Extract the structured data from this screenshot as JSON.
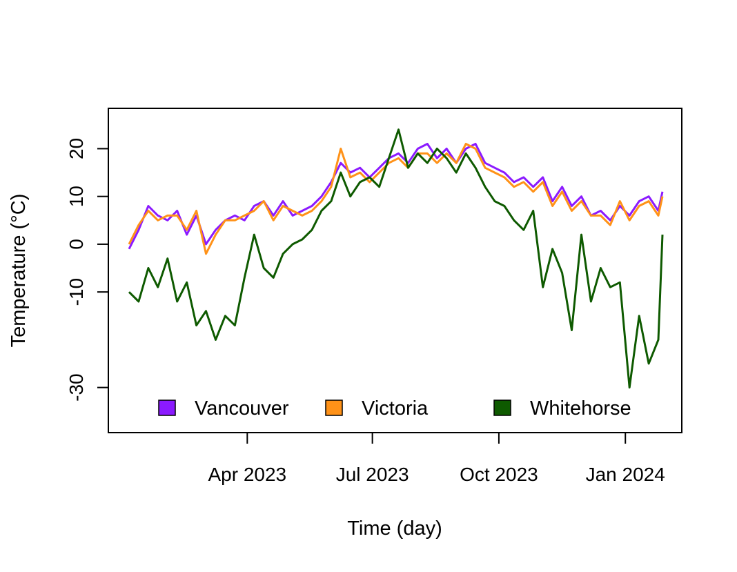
{
  "chart_data": {
    "type": "line",
    "title": "",
    "xlabel": "Time (day)",
    "ylabel": "Temperature (°C)",
    "xlim": [
      "2023-01-01",
      "2024-01-31"
    ],
    "ylim": [
      -38,
      27
    ],
    "grid": false,
    "legend_position": "bottom",
    "x_ticks": [
      {
        "date": "2023-04-01",
        "label": "Apr 2023"
      },
      {
        "date": "2023-07-01",
        "label": "Jul 2023"
      },
      {
        "date": "2023-10-01",
        "label": "Oct 2023"
      },
      {
        "date": "2024-01-01",
        "label": "Jan 2024"
      }
    ],
    "y_ticks": [
      {
        "value": 20,
        "label": "20"
      },
      {
        "value": 10,
        "label": "10"
      },
      {
        "value": 0,
        "label": "0"
      },
      {
        "value": -10,
        "label": "-10"
      },
      {
        "value": -30,
        "label": "-30"
      }
    ],
    "x": [
      "2023-01-05",
      "2023-01-12",
      "2023-01-19",
      "2023-01-26",
      "2023-02-02",
      "2023-02-09",
      "2023-02-16",
      "2023-02-23",
      "2023-03-02",
      "2023-03-09",
      "2023-03-16",
      "2023-03-23",
      "2023-03-30",
      "2023-04-06",
      "2023-04-13",
      "2023-04-20",
      "2023-04-27",
      "2023-05-04",
      "2023-05-11",
      "2023-05-18",
      "2023-05-25",
      "2023-06-01",
      "2023-06-08",
      "2023-06-15",
      "2023-06-22",
      "2023-06-29",
      "2023-07-06",
      "2023-07-13",
      "2023-07-20",
      "2023-07-27",
      "2023-08-03",
      "2023-08-10",
      "2023-08-17",
      "2023-08-24",
      "2023-08-31",
      "2023-09-07",
      "2023-09-14",
      "2023-09-21",
      "2023-09-28",
      "2023-10-05",
      "2023-10-12",
      "2023-10-19",
      "2023-10-26",
      "2023-11-02",
      "2023-11-09",
      "2023-11-16",
      "2023-11-23",
      "2023-11-30",
      "2023-12-07",
      "2023-12-14",
      "2023-12-21",
      "2023-12-28",
      "2024-01-04",
      "2024-01-11",
      "2024-01-18",
      "2024-01-25",
      "2024-01-28"
    ],
    "series": [
      {
        "name": "Vancouver",
        "color": "#8B1AFF",
        "values": [
          -1,
          3,
          8,
          6,
          5,
          7,
          2,
          6,
          0,
          3,
          5,
          6,
          5,
          8,
          9,
          6,
          9,
          6,
          7,
          8,
          10,
          13,
          17,
          15,
          16,
          14,
          16,
          18,
          19,
          17,
          20,
          21,
          18,
          20,
          17,
          20,
          21,
          17,
          16,
          15,
          13,
          14,
          12,
          14,
          9,
          12,
          8,
          10,
          6,
          7,
          5,
          8,
          6,
          9,
          10,
          7,
          11
        ]
      },
      {
        "name": "Victoria",
        "color": "#FF9218",
        "values": [
          0,
          4,
          7,
          5,
          6,
          6,
          3,
          7,
          -2,
          2,
          5,
          5,
          6,
          7,
          9,
          5,
          8,
          7,
          6,
          7,
          9,
          12,
          20,
          14,
          15,
          13,
          15,
          17,
          18,
          16,
          19,
          19,
          17,
          19,
          17,
          21,
          20,
          16,
          15,
          14,
          12,
          13,
          11,
          13,
          8,
          11,
          7,
          9,
          6,
          6,
          4,
          9,
          5,
          8,
          9,
          6,
          10
        ]
      },
      {
        "name": "Whitehorse",
        "color": "#0E5A00",
        "values": [
          -10,
          -12,
          -5,
          -9,
          -3,
          -12,
          -8,
          -17,
          -14,
          -20,
          -15,
          -17,
          -7,
          2,
          -5,
          -7,
          -2,
          0,
          1,
          3,
          7,
          9,
          15,
          10,
          13,
          14,
          12,
          18,
          24,
          16,
          19,
          17,
          20,
          18,
          15,
          19,
          16,
          12,
          9,
          8,
          5,
          3,
          7,
          -9,
          -1,
          -6,
          -18,
          2,
          -12,
          -5,
          -9,
          -8,
          -30,
          -15,
          -25,
          -20,
          2
        ]
      }
    ]
  }
}
